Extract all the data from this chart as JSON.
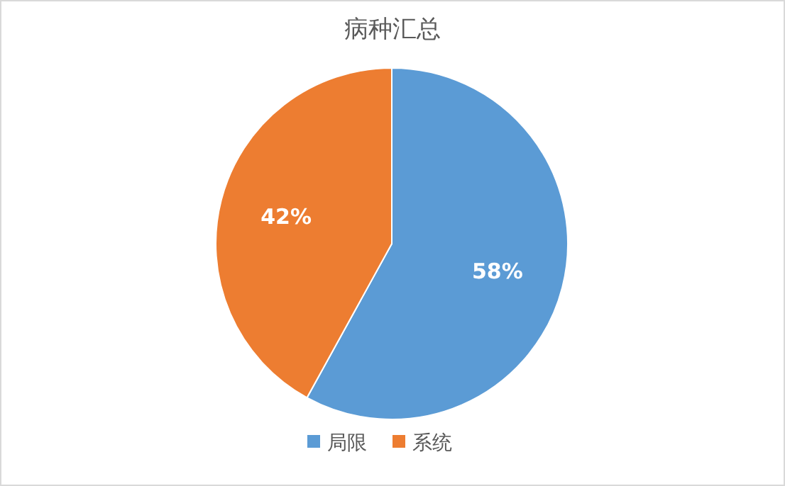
{
  "chart_data": {
    "type": "pie",
    "title": "病种汇总",
    "categories": [
      "局限",
      "系统"
    ],
    "values": [
      58,
      42
    ],
    "colors": [
      "#5b9bd5",
      "#ed7d31"
    ],
    "value_labels": [
      "58%",
      "42%"
    ],
    "legend": "bottom"
  }
}
